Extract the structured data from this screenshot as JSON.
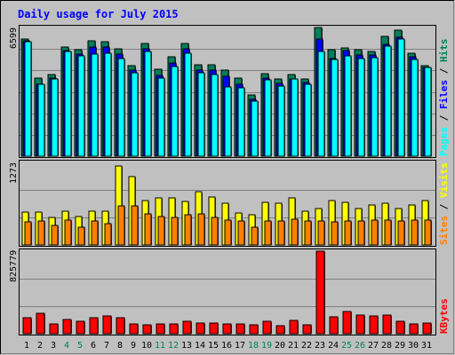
{
  "title": "Daily usage for July 2015",
  "colors": {
    "background": "#c0c0c0",
    "frame": "#000000",
    "title": "#0000ff",
    "hits": "#00805c",
    "files": "#0000ff",
    "pages": "#00ffff",
    "visits": "#ffff00",
    "sites": "#ff8000",
    "kbytes": "#ff0000",
    "weekend_label": "#00805c",
    "weekday_label": "#000000"
  },
  "chart_data": [
    {
      "type": "bar",
      "title": "Daily usage for July 2015",
      "ylabel_parts": [
        "Pages",
        "Files",
        "Hits"
      ],
      "ymax_label": "6599",
      "ymax": 6599,
      "categories": [
        "1",
        "2",
        "3",
        "4",
        "5",
        "6",
        "7",
        "8",
        "9",
        "10",
        "11",
        "12",
        "13",
        "14",
        "15",
        "16",
        "17",
        "18",
        "19",
        "20",
        "21",
        "22",
        "23",
        "24",
        "25",
        "26",
        "27",
        "28",
        "29",
        "30",
        "31"
      ],
      "weekend_days": [
        "4",
        "5",
        "11",
        "12",
        "18",
        "19",
        "25",
        "26"
      ],
      "series": [
        {
          "name": "Hits",
          "values": [
            6000,
            4000,
            4200,
            5600,
            5450,
            5900,
            5850,
            5500,
            4650,
            5800,
            4450,
            5100,
            5800,
            4700,
            4700,
            4400,
            4000,
            3150,
            4250,
            3950,
            4200,
            3950,
            6600,
            5450,
            5550,
            5450,
            5350,
            6150,
            6450,
            5300,
            4650
          ]
        },
        {
          "name": "Files",
          "values": [
            5900,
            3700,
            4000,
            5400,
            5250,
            5600,
            5600,
            5250,
            4400,
            5500,
            4150,
            4800,
            5500,
            4400,
            4400,
            4100,
            3700,
            2900,
            4000,
            3750,
            3950,
            3800,
            6000,
            5000,
            5400,
            5200,
            5200,
            5750,
            6100,
            5100,
            4550
          ]
        },
        {
          "name": "Pages",
          "values": [
            5850,
            3700,
            3950,
            5350,
            5150,
            5250,
            5300,
            5000,
            4300,
            5350,
            4000,
            4600,
            5300,
            4300,
            4200,
            3550,
            3500,
            2800,
            3900,
            3600,
            3950,
            3700,
            5350,
            4950,
            5150,
            5000,
            5050,
            5650,
            6000,
            4950,
            4550
          ]
        }
      ]
    },
    {
      "type": "bar",
      "ylabel_parts": [
        "Sites",
        "Visits"
      ],
      "ymax_label": "1273",
      "ymax": 1273,
      "categories": [
        "1",
        "2",
        "3",
        "4",
        "5",
        "6",
        "7",
        "8",
        "9",
        "10",
        "11",
        "12",
        "13",
        "14",
        "15",
        "16",
        "17",
        "18",
        "19",
        "20",
        "21",
        "22",
        "23",
        "24",
        "25",
        "26",
        "27",
        "28",
        "29",
        "30",
        "31"
      ],
      "series": [
        {
          "name": "Visits",
          "values": [
            500,
            500,
            420,
            520,
            440,
            520,
            520,
            1220,
            1050,
            680,
            730,
            730,
            670,
            820,
            740,
            640,
            490,
            470,
            660,
            640,
            720,
            520,
            560,
            680,
            660,
            560,
            620,
            640,
            560,
            620,
            680
          ]
        },
        {
          "name": "Sites",
          "values": [
            350,
            370,
            300,
            380,
            280,
            370,
            330,
            600,
            600,
            480,
            440,
            420,
            470,
            480,
            420,
            380,
            370,
            280,
            370,
            370,
            400,
            370,
            370,
            360,
            370,
            370,
            380,
            380,
            370,
            380,
            380
          ]
        }
      ]
    },
    {
      "type": "bar",
      "ylabel_parts": [
        "KBytes"
      ],
      "ymax_label": "825779",
      "ymax": 825779,
      "categories": [
        "1",
        "2",
        "3",
        "4",
        "5",
        "6",
        "7",
        "8",
        "9",
        "10",
        "11",
        "12",
        "13",
        "14",
        "15",
        "16",
        "17",
        "18",
        "19",
        "20",
        "21",
        "22",
        "23",
        "24",
        "25",
        "26",
        "27",
        "28",
        "29",
        "30",
        "31"
      ],
      "series": [
        {
          "name": "KBytes",
          "values": [
            160000,
            200000,
            100000,
            140000,
            120000,
            160000,
            180000,
            160000,
            100000,
            90000,
            100000,
            100000,
            120000,
            110000,
            110000,
            100000,
            100000,
            90000,
            120000,
            80000,
            130000,
            90000,
            825000,
            170000,
            220000,
            190000,
            180000,
            190000,
            120000,
            100000,
            110000
          ]
        }
      ]
    }
  ]
}
